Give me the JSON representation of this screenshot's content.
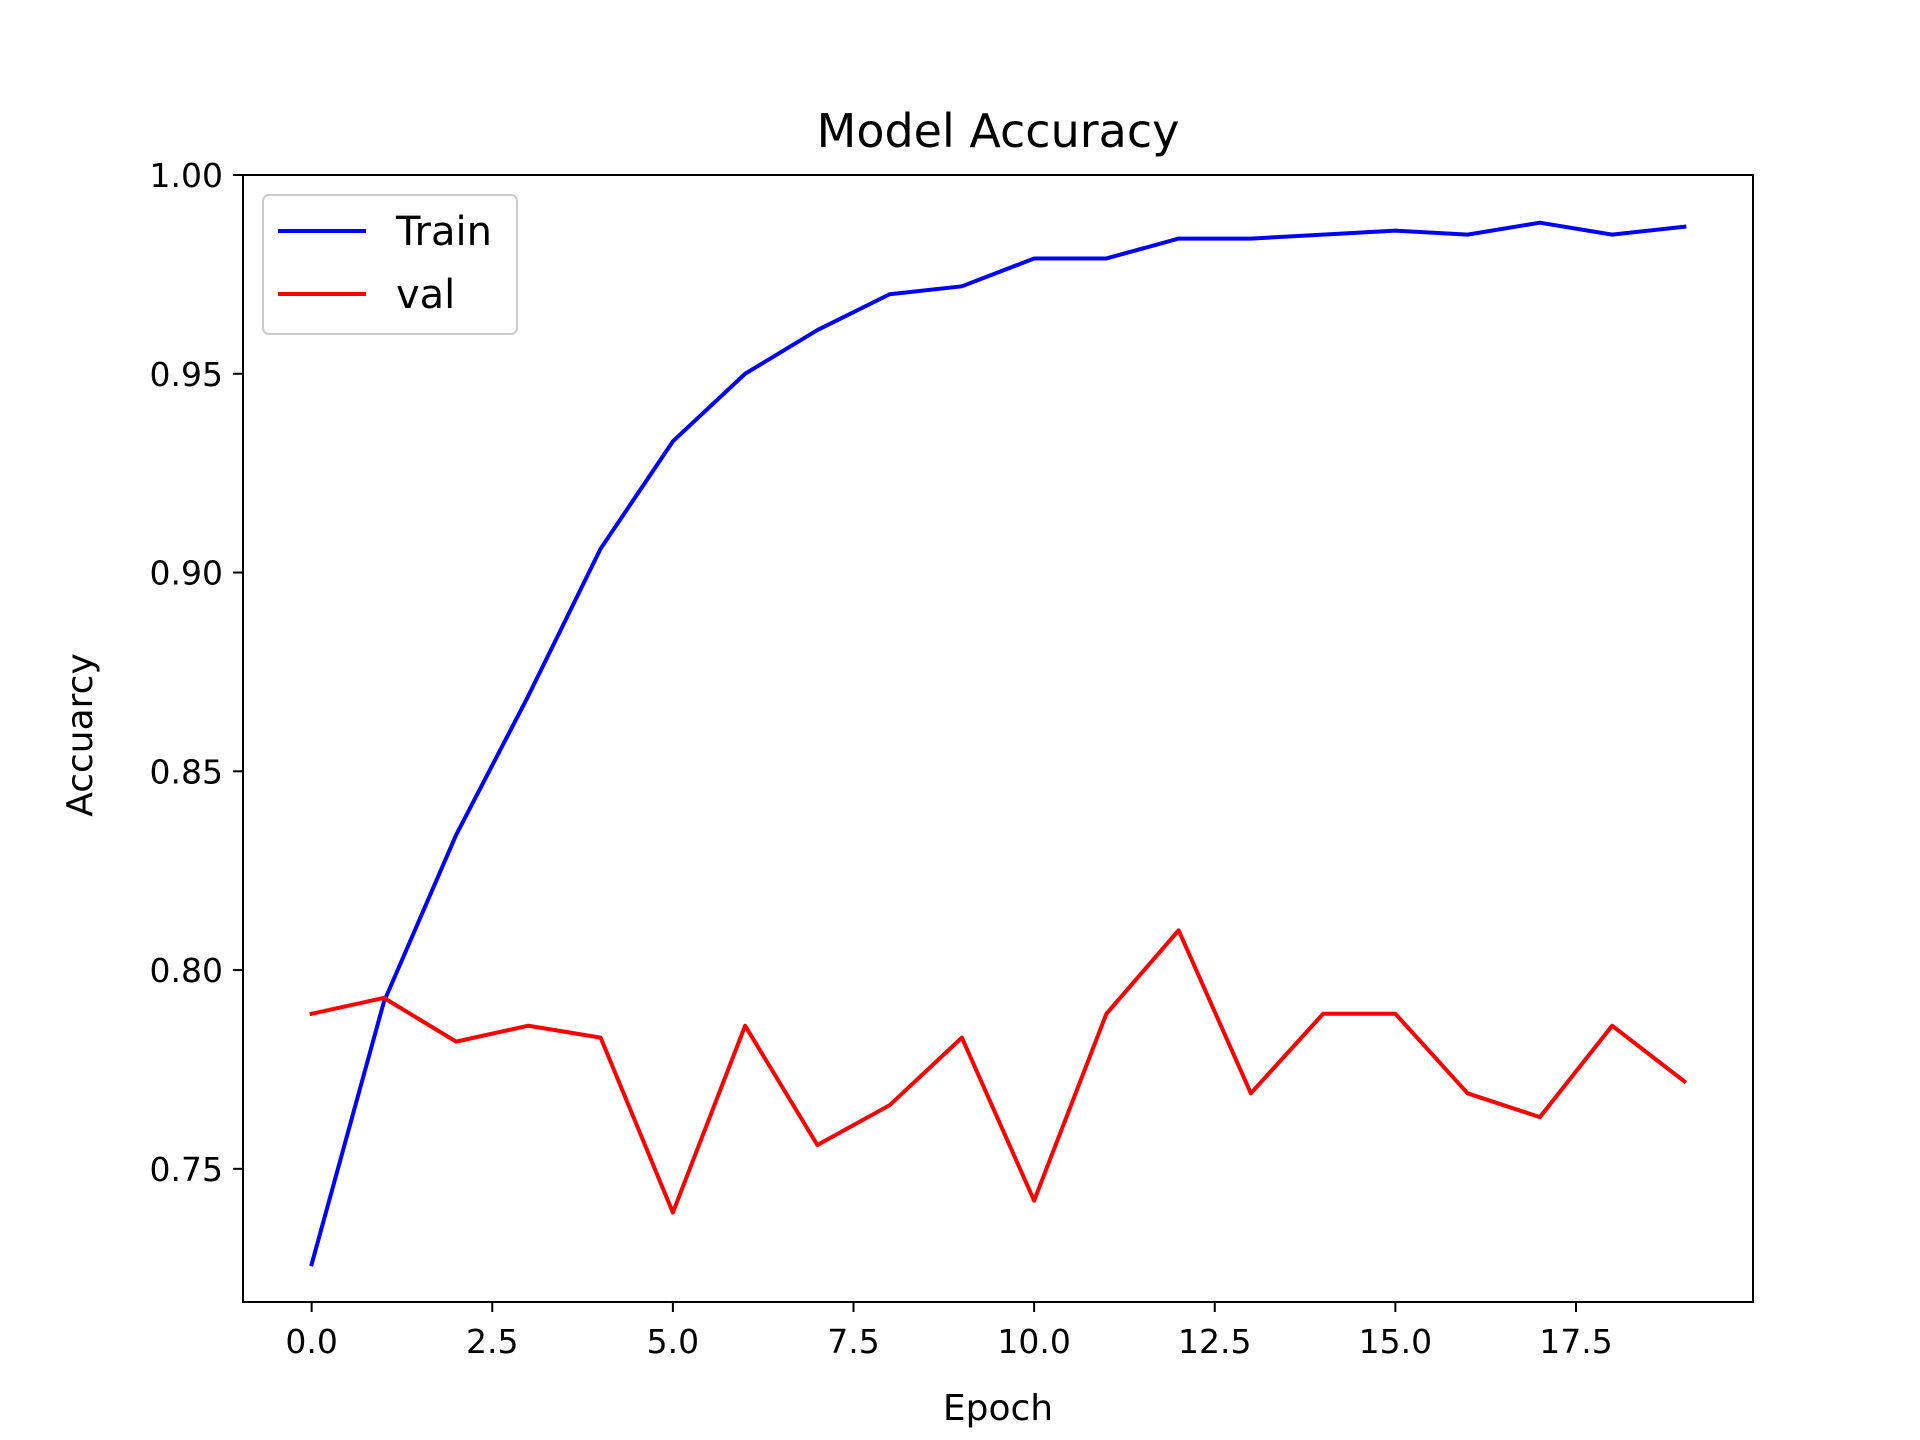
{
  "chart_data": {
    "type": "line",
    "title": "Model Accuracy",
    "xlabel": "Epoch",
    "ylabel": "Accuarcy",
    "x": [
      0,
      1,
      2,
      3,
      4,
      5,
      6,
      7,
      8,
      9,
      10,
      11,
      12,
      13,
      14,
      15,
      16,
      17,
      18,
      19
    ],
    "series": [
      {
        "name": "Train",
        "color": "#0000ff",
        "values": [
          0.726,
          0.792,
          0.834,
          0.869,
          0.906,
          0.933,
          0.95,
          0.961,
          0.97,
          0.972,
          0.979,
          0.979,
          0.984,
          0.984,
          0.985,
          0.986,
          0.985,
          0.988,
          0.985,
          0.987
        ]
      },
      {
        "name": "val",
        "color": "#ff0000",
        "values": [
          0.789,
          0.793,
          0.782,
          0.786,
          0.783,
          0.739,
          0.786,
          0.756,
          0.766,
          0.783,
          0.742,
          0.789,
          0.81,
          0.769,
          0.789,
          0.789,
          0.769,
          0.763,
          0.786,
          0.772
        ]
      }
    ],
    "xlim": [
      -0.95,
      19.95
    ],
    "ylim": [
      0.7165,
      1.0
    ],
    "xticks": [
      0,
      2.5,
      5,
      7.5,
      10,
      12.5,
      15,
      17.5
    ],
    "xtick_labels": [
      "0.0",
      "2.5",
      "5.0",
      "7.5",
      "10.0",
      "12.5",
      "15.0",
      "17.5"
    ],
    "yticks": [
      0.75,
      0.8,
      0.85,
      0.9,
      0.95,
      1.0
    ],
    "ytick_labels": [
      "0.75",
      "0.80",
      "0.85",
      "0.90",
      "0.95",
      "1.00"
    ],
    "legend_position": "upper-left",
    "grid": false
  }
}
